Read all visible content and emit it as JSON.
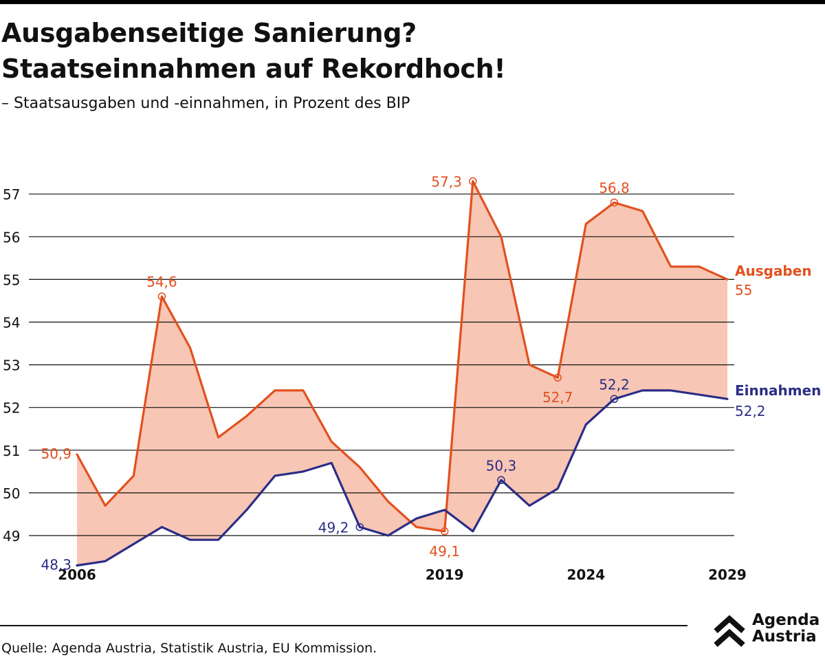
{
  "title_line1": "Ausgabenseitige Sanierung?",
  "title_line2": "Staatseinnahmen auf Rekordhoch!",
  "subtitle": "– Staatsausgaben und -einnahmen, in Prozent des BIP",
  "source": "Quelle: Agenda Austria, Statistik Austria, EU Kommission.",
  "logo": {
    "line1": "Agenda",
    "line2": "Austria"
  },
  "colors": {
    "ausgaben": "#e2501e",
    "einnahmen": "#2b2d86",
    "fill": "#f7c6b4",
    "grid": "#111111"
  },
  "chart_data": {
    "type": "line",
    "x": [
      2006,
      2007,
      2008,
      2009,
      2010,
      2011,
      2012,
      2013,
      2014,
      2015,
      2016,
      2017,
      2018,
      2019,
      2020,
      2021,
      2022,
      2023,
      2024,
      2025,
      2026,
      2027,
      2028,
      2029
    ],
    "xticks": [
      2006,
      2019,
      2024,
      2029
    ],
    "yticks": [
      49,
      50,
      51,
      52,
      53,
      54,
      55,
      56,
      57
    ],
    "ylim": [
      48.3,
      57.3
    ],
    "grid": true,
    "fill_between": true,
    "series": [
      {
        "name": "Ausgaben",
        "end_label": "55",
        "values": [
          50.9,
          49.7,
          50.4,
          54.6,
          53.4,
          51.3,
          51.8,
          52.4,
          52.4,
          51.2,
          50.6,
          49.8,
          49.2,
          49.1,
          57.3,
          56.0,
          53.0,
          52.7,
          56.3,
          56.8,
          56.6,
          55.3,
          55.3,
          55.0
        ],
        "annotations": [
          {
            "x": 2006,
            "label": "50,9"
          },
          {
            "x": 2009,
            "label": "54,6"
          },
          {
            "x": 2019,
            "label": "49,1"
          },
          {
            "x": 2020,
            "label": "57,3"
          },
          {
            "x": 2023,
            "label": "52,7"
          },
          {
            "x": 2025,
            "label": "56,8"
          }
        ]
      },
      {
        "name": "Einnahmen",
        "end_label": "52,2",
        "values": [
          48.3,
          48.4,
          48.8,
          49.2,
          48.9,
          48.9,
          49.6,
          50.4,
          50.5,
          50.7,
          49.2,
          49.0,
          49.4,
          49.6,
          49.1,
          50.3,
          49.7,
          50.1,
          51.6,
          52.2,
          52.4,
          52.4,
          52.3,
          52.2
        ],
        "annotations": [
          {
            "x": 2006,
            "label": "48,3"
          },
          {
            "x": 2016,
            "label": "49,2"
          },
          {
            "x": 2021,
            "label": "50,3"
          },
          {
            "x": 2025,
            "label": "52,2"
          }
        ]
      }
    ]
  }
}
